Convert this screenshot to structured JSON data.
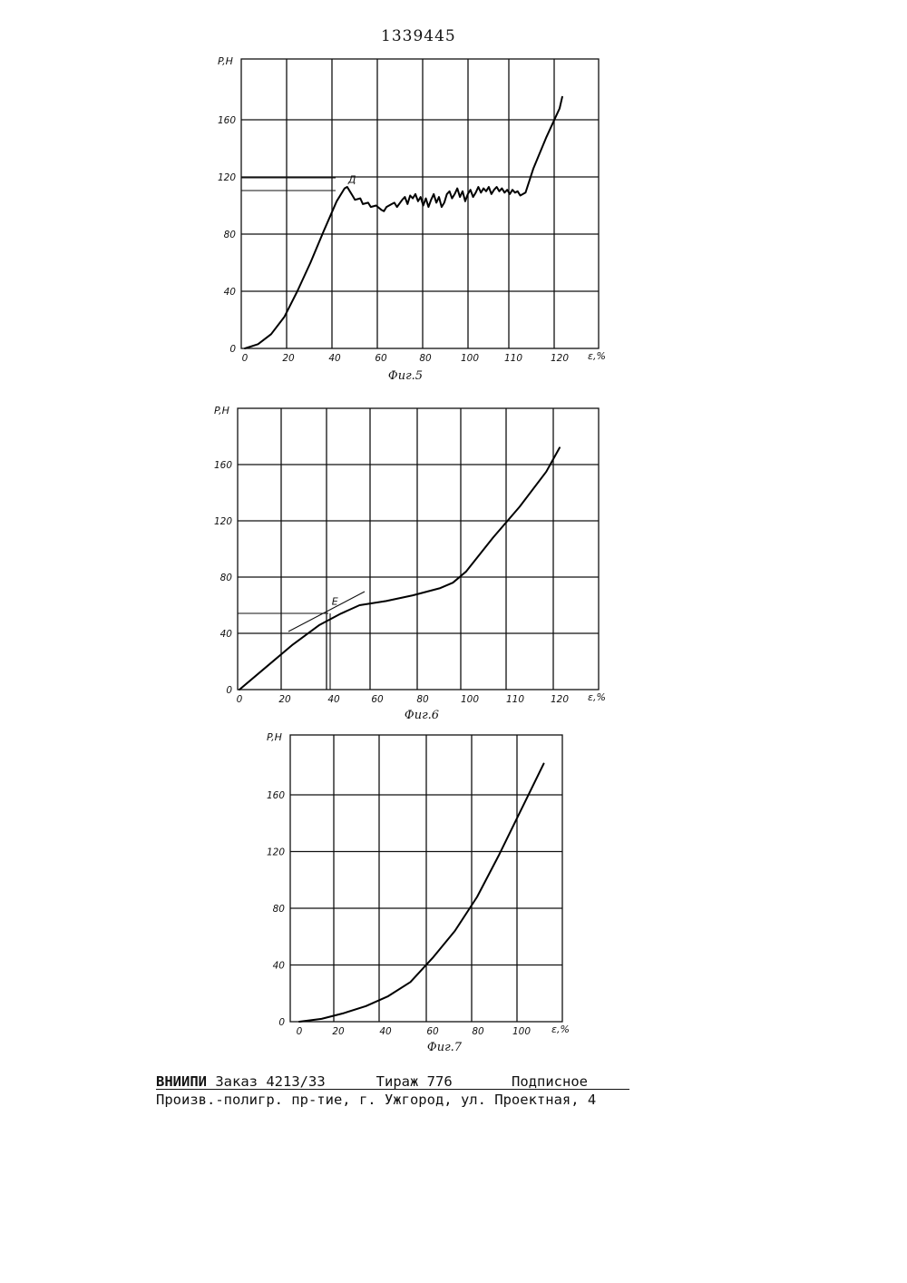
{
  "page_number": "1339445",
  "figures": [
    {
      "caption": "Фиг.5",
      "ylabel": "P,H",
      "xlabel": "ε,%",
      "x_ticks": [
        "0",
        "20",
        "40",
        "60",
        "80",
        "100",
        "110",
        "120"
      ],
      "y_ticks": [
        "0",
        "40",
        "80",
        "120",
        "160"
      ],
      "marker": "Д"
    },
    {
      "caption": "Фиг.6",
      "ylabel": "P,H",
      "xlabel": "ε,%",
      "x_ticks": [
        "0",
        "20",
        "40",
        "60",
        "80",
        "100",
        "110",
        "120"
      ],
      "y_ticks": [
        "0",
        "40",
        "80",
        "120",
        "160"
      ],
      "marker": "E"
    },
    {
      "caption": "Фиг.7",
      "ylabel": "P,H",
      "xlabel": "ε,%",
      "x_ticks": [
        "0",
        "20",
        "40",
        "60",
        "80",
        "100"
      ],
      "y_ticks": [
        "0",
        "40",
        "80",
        "120",
        "160"
      ]
    }
  ],
  "chart_data": [
    {
      "type": "line",
      "title": "",
      "xlabel": "ε,%",
      "ylabel": "P,H",
      "x_tick_labels": [
        "0",
        "20",
        "40",
        "60",
        "80",
        "100",
        "110",
        "120"
      ],
      "ylim": [
        0,
        180
      ],
      "grid": true,
      "series": [
        {
          "points": [
            [
              0,
              0
            ],
            [
              5,
              3
            ],
            [
              10,
              10
            ],
            [
              15,
              22
            ],
            [
              20,
              40
            ],
            [
              25,
              60
            ],
            [
              30,
              82
            ],
            [
              35,
              103
            ],
            [
              38,
              112
            ],
            [
              40,
              111
            ],
            [
              45,
              104
            ],
            [
              50,
              98
            ],
            [
              55,
              102
            ],
            [
              60,
              103
            ],
            [
              70,
              106
            ],
            [
              80,
              108
            ],
            [
              90,
              110
            ],
            [
              100,
              112
            ],
            [
              105,
              110
            ],
            [
              107,
              108
            ],
            [
              110,
              126
            ],
            [
              115,
              148
            ],
            [
              120,
              168
            ],
            [
              121,
              176
            ]
          ]
        }
      ],
      "annotations": [
        {
          "text": "Д",
          "x": 38,
          "y": 112
        }
      ]
    },
    {
      "type": "line",
      "title": "",
      "xlabel": "ε,%",
      "ylabel": "P,H",
      "x_tick_labels": [
        "0",
        "20",
        "40",
        "60",
        "80",
        "100",
        "110",
        "120"
      ],
      "ylim": [
        0,
        190
      ],
      "grid": true,
      "series": [
        {
          "points": [
            [
              0,
              0
            ],
            [
              10,
              16
            ],
            [
              20,
              32
            ],
            [
              30,
              46
            ],
            [
              38,
              54
            ],
            [
              45,
              60
            ],
            [
              55,
              63
            ],
            [
              65,
              67
            ],
            [
              75,
              72
            ],
            [
              80,
              76
            ],
            [
              85,
              84
            ],
            [
              95,
              108
            ],
            [
              105,
              130
            ],
            [
              115,
              155
            ],
            [
              120,
              172
            ]
          ]
        }
      ],
      "annotations": [
        {
          "text": "E",
          "x": 38,
          "y": 54
        }
      ]
    },
    {
      "type": "line",
      "title": "",
      "xlabel": "ε,%",
      "ylabel": "P,H",
      "x_tick_labels": [
        "0",
        "20",
        "40",
        "60",
        "80",
        "100"
      ],
      "ylim": [
        0,
        190
      ],
      "grid": true,
      "series": [
        {
          "points": [
            [
              0,
              0
            ],
            [
              10,
              2
            ],
            [
              20,
              6
            ],
            [
              30,
              11
            ],
            [
              40,
              18
            ],
            [
              50,
              28
            ],
            [
              60,
              45
            ],
            [
              70,
              64
            ],
            [
              80,
              88
            ],
            [
              90,
              118
            ],
            [
              100,
              150
            ],
            [
              110,
              182
            ]
          ]
        }
      ]
    }
  ],
  "footer": {
    "line1": {
      "org": "ВНИИПИ",
      "order": "Заказ 4213/33",
      "run": "Тираж 776",
      "status": "Подписное"
    },
    "line2": "Произв.-полигр. пр-тие, г. Ужгород, ул. Проектная, 4"
  }
}
